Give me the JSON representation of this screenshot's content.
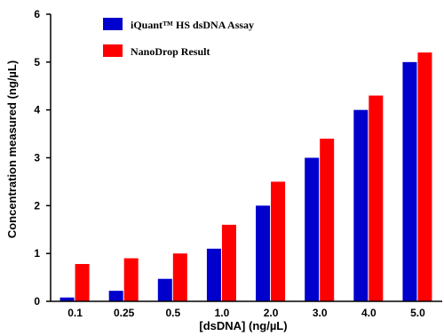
{
  "chart_data": {
    "type": "bar",
    "xlabel": "[dsDNA] (ng/µL)",
    "ylabel": "Concentration measured (ng/µL)",
    "categories": [
      "0.1",
      "0.25",
      "0.5",
      "1.0",
      "2.0",
      "3.0",
      "4.0",
      "5.0"
    ],
    "ylim": [
      0,
      6
    ],
    "yticks": [
      "0",
      "1",
      "2",
      "3",
      "4",
      "5",
      "6"
    ],
    "grid": false,
    "legend_position": "top-left",
    "series": [
      {
        "name": "iQuant™ HS dsDNA Assay",
        "color": "#0000cc",
        "values": [
          0.08,
          0.22,
          0.47,
          1.1,
          2.0,
          3.0,
          4.0,
          5.0
        ]
      },
      {
        "name": "NanoDrop Result",
        "color": "#ff0000",
        "values": [
          0.78,
          0.9,
          1.0,
          1.6,
          2.5,
          3.4,
          4.3,
          5.2
        ]
      }
    ]
  }
}
